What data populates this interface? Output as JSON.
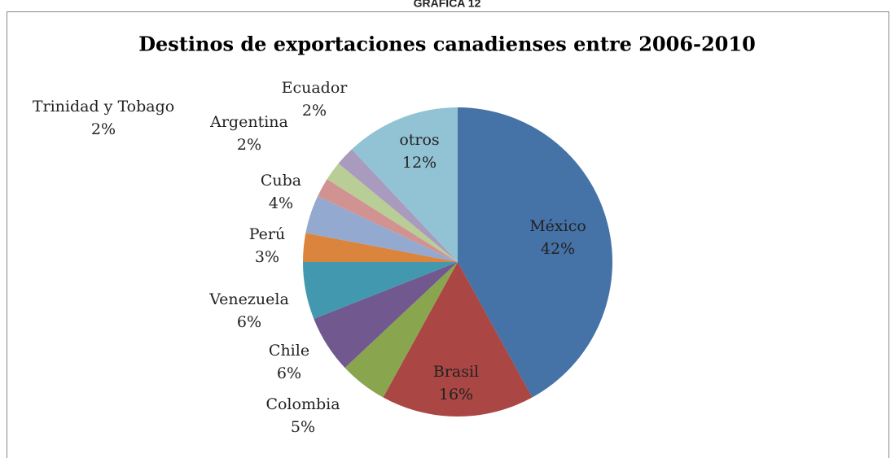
{
  "caption": "GRÁFICA 12",
  "chart_data": {
    "type": "pie",
    "title": "Destinos de exportaciones canadienses entre 2006-2010",
    "categories": [
      "México",
      "Brasil",
      "Colombia",
      "Chile",
      "Venezuela",
      "Perú",
      "Cuba",
      "Trinidad y Tobago",
      "Argentina",
      "Ecuador",
      "otros"
    ],
    "values": [
      42,
      16,
      5,
      6,
      6,
      3,
      4,
      2,
      2,
      2,
      12
    ],
    "value_labels": [
      "42%",
      "16%",
      "5%",
      "6%",
      "6%",
      "3%",
      "4%",
      "2%",
      "2%",
      "2%",
      "12%"
    ],
    "colors": [
      "#4572a7",
      "#aa4643",
      "#89a54e",
      "#71588f",
      "#4198af",
      "#db843d",
      "#93a9cf",
      "#d19392",
      "#b9cd96",
      "#a99bbd",
      "#92c3d4"
    ]
  }
}
